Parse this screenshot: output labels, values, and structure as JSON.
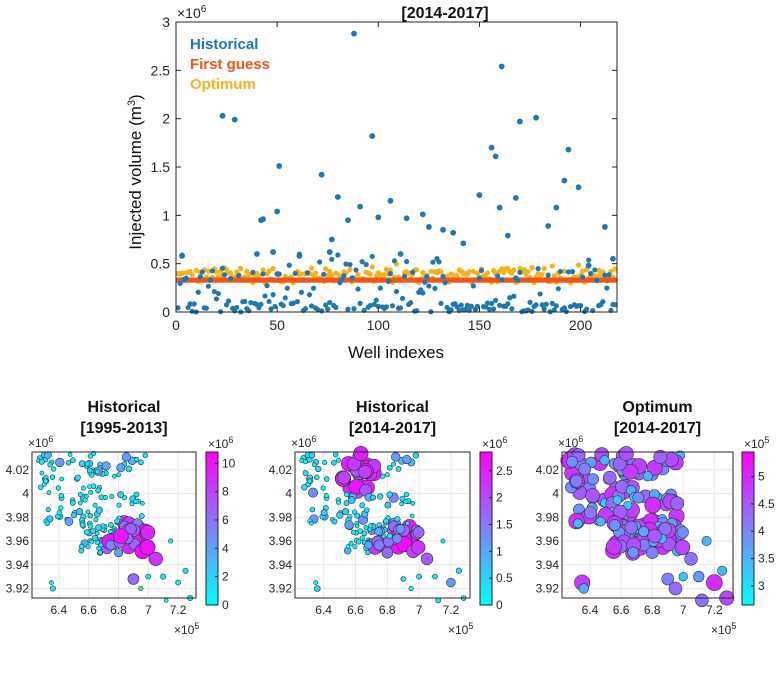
{
  "chart_data": [
    {
      "type": "scatter",
      "title": "[2014-2017]",
      "xlabel": "Well indexes",
      "ylabel": "Injected volume (m",
      "ylabel_sup": "3",
      "ylabel_close": ")",
      "y_exponent": "×10",
      "y_exponent_power": "6",
      "xlim": [
        0,
        218
      ],
      "ylim": [
        0,
        3
      ],
      "xticks": [
        "0",
        "50",
        "100",
        "150",
        "200"
      ],
      "yticks": [
        "0",
        "0.5",
        "1",
        "1.5",
        "2",
        "2.5",
        "3"
      ],
      "legend": [
        {
          "label": "Historical",
          "color": "#1f77b4"
        },
        {
          "label": "First guess",
          "color": "#f0561a"
        },
        {
          "label": "Optimum",
          "color": "#f5b21a"
        }
      ],
      "first_guess_value": 0.33,
      "historical_highlights": [
        {
          "x": 3,
          "y": 0.58
        },
        {
          "x": 23,
          "y": 2.03
        },
        {
          "x": 29,
          "y": 1.99
        },
        {
          "x": 40,
          "y": 0.6
        },
        {
          "x": 42,
          "y": 0.95
        },
        {
          "x": 43,
          "y": 0.96
        },
        {
          "x": 48,
          "y": 0.62
        },
        {
          "x": 50,
          "y": 1.04
        },
        {
          "x": 51,
          "y": 1.51
        },
        {
          "x": 61,
          "y": 0.58
        },
        {
          "x": 72,
          "y": 1.42
        },
        {
          "x": 76,
          "y": 0.62
        },
        {
          "x": 77,
          "y": 0.75
        },
        {
          "x": 80,
          "y": 1.19
        },
        {
          "x": 85,
          "y": 0.95
        },
        {
          "x": 88,
          "y": 2.88
        },
        {
          "x": 91,
          "y": 1.09
        },
        {
          "x": 97,
          "y": 1.82
        },
        {
          "x": 100,
          "y": 0.98
        },
        {
          "x": 106,
          "y": 1.15
        },
        {
          "x": 111,
          "y": 0.6
        },
        {
          "x": 114,
          "y": 0.97
        },
        {
          "x": 122,
          "y": 1.01
        },
        {
          "x": 125,
          "y": 0.88
        },
        {
          "x": 132,
          "y": 0.85
        },
        {
          "x": 137,
          "y": 0.82
        },
        {
          "x": 142,
          "y": 0.71
        },
        {
          "x": 150,
          "y": 1.21
        },
        {
          "x": 156,
          "y": 1.7
        },
        {
          "x": 158,
          "y": 1.61
        },
        {
          "x": 160,
          "y": 1.08
        },
        {
          "x": 161,
          "y": 2.54
        },
        {
          "x": 164,
          "y": 0.79
        },
        {
          "x": 168,
          "y": 1.18
        },
        {
          "x": 170,
          "y": 1.97
        },
        {
          "x": 178,
          "y": 2.01
        },
        {
          "x": 184,
          "y": 0.89
        },
        {
          "x": 188,
          "y": 1.08
        },
        {
          "x": 192,
          "y": 1.36
        },
        {
          "x": 194,
          "y": 1.68
        },
        {
          "x": 199,
          "y": 1.29
        },
        {
          "x": 204,
          "y": 0.48
        },
        {
          "x": 212,
          "y": 0.88
        },
        {
          "x": 216,
          "y": 0.55
        }
      ]
    },
    {
      "type": "scatter",
      "title_line1": "Historical",
      "title_line2": "[1995-2013]",
      "colorbar_ticks": [
        "0",
        "2",
        "4",
        "6",
        "8",
        "10"
      ],
      "colorbar_range": [
        0,
        10.8
      ],
      "colorbar_exponent": "×10",
      "colorbar_exponent_power": "6",
      "yticks": [
        "3.92",
        "3.94",
        "3.96",
        "3.98",
        "4",
        "4.02"
      ],
      "ylim": [
        3.912,
        4.035
      ],
      "y_exponent": "×10",
      "y_exponent_power": "6",
      "xticks": [
        "6.4",
        "6.6",
        "6.8",
        "7",
        "7.2"
      ],
      "xlim": [
        6.22,
        7.32
      ],
      "x_exponent": "×10",
      "x_exponent_power": "5"
    },
    {
      "type": "scatter",
      "title_line1": "Historical",
      "title_line2": "[2014-2017]",
      "colorbar_ticks": [
        "0",
        "0.5",
        "1",
        "1.5",
        "2",
        "2.5"
      ],
      "colorbar_range": [
        0,
        2.85
      ],
      "colorbar_exponent": "×10",
      "colorbar_exponent_power": "6",
      "yticks": [
        "3.92",
        "3.94",
        "3.96",
        "3.98",
        "4",
        "4.02"
      ],
      "ylim": [
        3.912,
        4.035
      ],
      "y_exponent": "×10",
      "y_exponent_power": "6",
      "xticks": [
        "6.4",
        "6.6",
        "6.8",
        "7",
        "7.2"
      ],
      "xlim": [
        6.22,
        7.32
      ],
      "x_exponent": "×10",
      "x_exponent_power": "5"
    },
    {
      "type": "scatter",
      "title_line1": "Optimum",
      "title_line2": "[2014-2017]",
      "colorbar_ticks": [
        "3",
        "3.5",
        "4",
        "4.5",
        "5"
      ],
      "colorbar_range": [
        2.65,
        5.45
      ],
      "colorbar_exponent": "×10",
      "colorbar_exponent_power": "5",
      "yticks": [
        "3.92",
        "3.94",
        "3.96",
        "3.98",
        "4",
        "4.02"
      ],
      "ylim": [
        3.912,
        4.035
      ],
      "y_exponent": "×10",
      "y_exponent_power": "6",
      "xticks": [
        "6.4",
        "6.6",
        "6.8",
        "7",
        "7.2"
      ],
      "xlim": [
        6.22,
        7.32
      ],
      "x_exponent": "×10",
      "x_exponent_power": "5"
    }
  ]
}
